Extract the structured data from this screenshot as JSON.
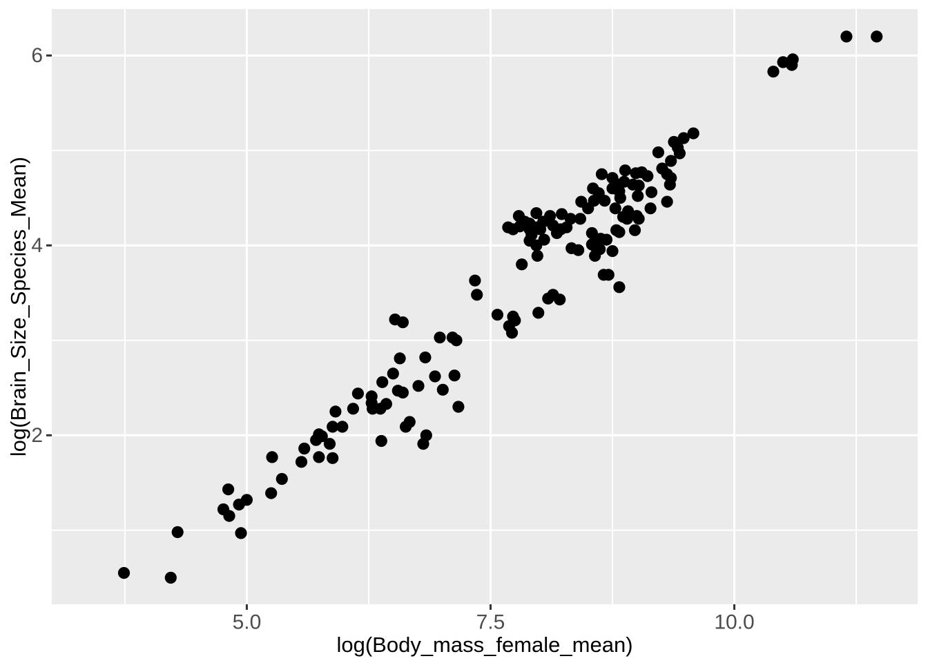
{
  "figure": {
    "background": "#FFFFFF",
    "panel_background": "#EBEBEB",
    "grid_color": "#FFFFFF",
    "point_color": "#000000",
    "tick_mark_color": "#333333",
    "tick_label_color": "#4D4D4D",
    "axis_title_color": "#000000"
  },
  "chart_data": {
    "type": "scatter",
    "title": "",
    "xlabel": "log(Body_mass_female_mean)",
    "ylabel": "log(Brain_Size_Species_Mean)",
    "xlim": [
      3.0,
      11.88
    ],
    "ylim": [
      0.22,
      6.49
    ],
    "grid": "major-and-minor",
    "legend_position": "none",
    "x_major_ticks": {
      "values": [
        5.0,
        7.5,
        10.0
      ],
      "labels": [
        "5.0",
        "7.5",
        "10.0"
      ]
    },
    "y_major_ticks": {
      "values": [
        2,
        4,
        6
      ],
      "labels": [
        "2",
        "4",
        "6"
      ]
    },
    "x_minor_gridlines": [
      3.75,
      6.25,
      8.75,
      11.25
    ],
    "y_minor_gridlines": [
      1,
      3,
      5
    ],
    "points": [
      [
        3.74,
        0.55
      ],
      [
        4.22,
        0.5
      ],
      [
        4.29,
        0.98
      ],
      [
        4.81,
        1.43
      ],
      [
        4.76,
        1.22
      ],
      [
        4.82,
        1.15
      ],
      [
        4.92,
        1.27
      ],
      [
        5.0,
        1.32
      ],
      [
        4.94,
        0.97
      ],
      [
        5.26,
        1.77
      ],
      [
        5.25,
        1.39
      ],
      [
        5.36,
        1.54
      ],
      [
        5.59,
        1.86
      ],
      [
        5.56,
        1.72
      ],
      [
        5.74,
        2.01
      ],
      [
        5.77,
        1.99
      ],
      [
        5.71,
        1.95
      ],
      [
        5.85,
        1.91
      ],
      [
        5.88,
        1.76
      ],
      [
        5.74,
        1.77
      ],
      [
        5.88,
        2.09
      ],
      [
        5.98,
        2.09
      ],
      [
        5.91,
        2.25
      ],
      [
        6.09,
        2.28
      ],
      [
        6.14,
        2.44
      ],
      [
        6.28,
        2.41
      ],
      [
        6.28,
        2.34
      ],
      [
        6.29,
        2.28
      ],
      [
        6.37,
        2.28
      ],
      [
        6.43,
        2.33
      ],
      [
        6.39,
        2.56
      ],
      [
        6.5,
        2.65
      ],
      [
        6.55,
        2.47
      ],
      [
        6.6,
        2.45
      ],
      [
        6.76,
        2.52
      ],
      [
        6.93,
        2.62
      ],
      [
        7.01,
        2.48
      ],
      [
        7.13,
        2.63
      ],
      [
        7.17,
        2.3
      ],
      [
        6.67,
        2.14
      ],
      [
        6.63,
        2.09
      ],
      [
        6.84,
        2.0
      ],
      [
        6.81,
        1.91
      ],
      [
        6.38,
        1.94
      ],
      [
        6.52,
        3.22
      ],
      [
        6.6,
        3.19
      ],
      [
        6.57,
        2.81
      ],
      [
        6.83,
        2.82
      ],
      [
        6.98,
        3.03
      ],
      [
        7.11,
        3.03
      ],
      [
        7.15,
        3.0
      ],
      [
        7.34,
        3.63
      ],
      [
        7.36,
        3.48
      ],
      [
        7.57,
        3.27
      ],
      [
        7.73,
        3.25
      ],
      [
        7.75,
        3.21
      ],
      [
        7.69,
        3.15
      ],
      [
        7.72,
        3.08
      ],
      [
        7.99,
        3.29
      ],
      [
        8.14,
        3.48
      ],
      [
        8.09,
        3.44
      ],
      [
        8.21,
        3.43
      ],
      [
        7.82,
        3.8
      ],
      [
        7.98,
        3.89
      ],
      [
        7.68,
        4.19
      ],
      [
        7.73,
        4.17
      ],
      [
        7.79,
        4.31
      ],
      [
        7.8,
        4.2
      ],
      [
        7.85,
        4.25
      ],
      [
        7.9,
        4.23
      ],
      [
        7.9,
        4.17
      ],
      [
        7.92,
        4.11
      ],
      [
        7.9,
        4.05
      ],
      [
        7.97,
        4.34
      ],
      [
        7.97,
        4.19
      ],
      [
        8.01,
        4.17
      ],
      [
        7.97,
        4.0
      ],
      [
        8.04,
        4.25
      ],
      [
        8.05,
        4.06
      ],
      [
        8.11,
        4.31
      ],
      [
        8.14,
        4.21
      ],
      [
        8.18,
        4.13
      ],
      [
        8.22,
        4.17
      ],
      [
        8.28,
        4.19
      ],
      [
        8.32,
        4.28
      ],
      [
        8.23,
        4.33
      ],
      [
        8.33,
        3.97
      ],
      [
        8.4,
        3.95
      ],
      [
        8.42,
        4.28
      ],
      [
        8.43,
        4.46
      ],
      [
        8.5,
        4.39
      ],
      [
        8.54,
        4.13
      ],
      [
        8.54,
        4.01
      ],
      [
        8.58,
        3.98
      ],
      [
        8.55,
        4.6
      ],
      [
        8.61,
        4.55
      ],
      [
        8.64,
        4.75
      ],
      [
        8.75,
        4.71
      ],
      [
        8.78,
        4.65
      ],
      [
        8.87,
        4.67
      ],
      [
        8.88,
        4.79
      ],
      [
        8.96,
        4.64
      ],
      [
        9.02,
        4.63
      ],
      [
        8.99,
        4.76
      ],
      [
        9.05,
        4.77
      ],
      [
        9.11,
        4.73
      ],
      [
        8.83,
        4.5
      ],
      [
        8.82,
        4.57
      ],
      [
        8.75,
        4.6
      ],
      [
        9.15,
        4.56
      ],
      [
        8.56,
        4.47
      ],
      [
        8.67,
        4.47
      ],
      [
        9.01,
        4.52
      ],
      [
        8.78,
        4.39
      ],
      [
        8.91,
        4.36
      ],
      [
        8.86,
        4.3
      ],
      [
        8.9,
        4.28
      ],
      [
        9.0,
        4.31
      ],
      [
        9.02,
        4.28
      ],
      [
        8.98,
        4.16
      ],
      [
        8.79,
        4.16
      ],
      [
        8.82,
        4.14
      ],
      [
        9.14,
        4.39
      ],
      [
        9.31,
        4.46
      ],
      [
        8.58,
        4.07
      ],
      [
        8.63,
        4.07
      ],
      [
        8.69,
        4.06
      ],
      [
        8.62,
        3.96
      ],
      [
        8.57,
        3.89
      ],
      [
        8.75,
        3.94
      ],
      [
        8.66,
        3.69
      ],
      [
        8.71,
        3.69
      ],
      [
        8.82,
        3.56
      ],
      [
        9.22,
        4.98
      ],
      [
        9.26,
        4.81
      ],
      [
        9.31,
        4.75
      ],
      [
        9.35,
        4.71
      ],
      [
        9.34,
        4.64
      ],
      [
        9.35,
        4.89
      ],
      [
        9.38,
        5.09
      ],
      [
        9.42,
        5.03
      ],
      [
        9.44,
        4.97
      ],
      [
        9.48,
        5.13
      ],
      [
        9.58,
        5.18
      ],
      [
        10.4,
        5.83
      ],
      [
        10.5,
        5.93
      ],
      [
        10.6,
        5.96
      ],
      [
        10.59,
        5.9
      ],
      [
        11.15,
        6.2
      ],
      [
        11.46,
        6.2
      ]
    ]
  }
}
